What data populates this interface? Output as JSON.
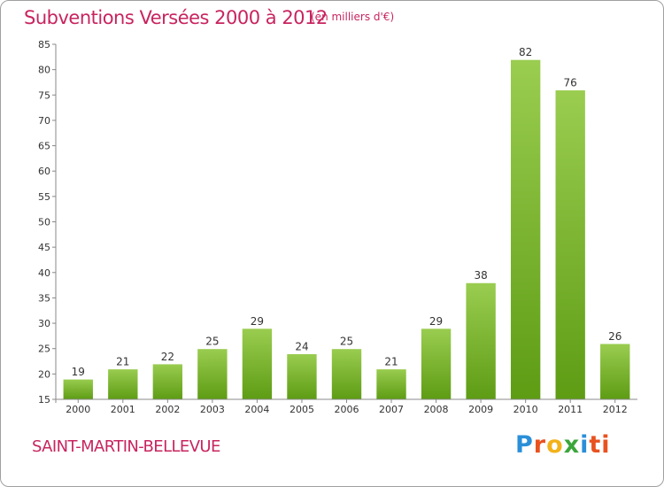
{
  "header": {
    "title": "Subventions Versées 2000 à 2012",
    "unit": "(en milliers d'€)"
  },
  "footer": {
    "commune": "SAINT-MARTIN-BELLEVUE",
    "logo_letters": [
      "P",
      "r",
      "o",
      "x",
      "i",
      "ti"
    ]
  },
  "colors": {
    "accent": "#c8245f",
    "bar_top": "#9acd50",
    "bar_bottom": "#5e9c14",
    "axis": "#888888"
  },
  "chart_data": {
    "type": "bar",
    "title": "Subventions Versées 2000 à 2012",
    "categories": [
      "2000",
      "2001",
      "2002",
      "2003",
      "2004",
      "2005",
      "2006",
      "2007",
      "2008",
      "2009",
      "2010",
      "2011",
      "2012"
    ],
    "values": [
      19,
      21,
      22,
      25,
      29,
      24,
      25,
      21,
      29,
      38,
      82,
      76,
      26
    ],
    "ylim": [
      15,
      85
    ],
    "yticks": [
      15,
      20,
      25,
      30,
      35,
      40,
      45,
      50,
      55,
      60,
      65,
      70,
      75,
      80,
      85
    ],
    "grid": false,
    "data_labels": true
  }
}
